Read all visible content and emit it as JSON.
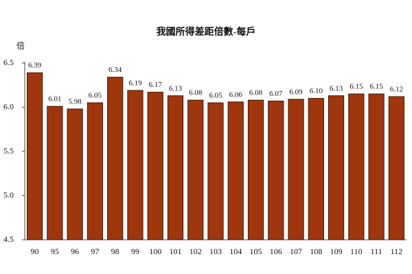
{
  "chart_data": {
    "type": "bar",
    "title": "我國所得差距倍數-每戶",
    "y_label": "倍",
    "categories": [
      "90",
      "95",
      "96",
      "97",
      "98",
      "99",
      "100",
      "101",
      "102",
      "103",
      "104",
      "105",
      "106",
      "107",
      "108",
      "109",
      "110",
      "111",
      "112"
    ],
    "values": [
      6.39,
      6.01,
      5.98,
      6.05,
      6.34,
      6.19,
      6.17,
      6.13,
      6.08,
      6.05,
      6.06,
      6.08,
      6.07,
      6.09,
      6.1,
      6.13,
      6.15,
      6.15,
      6.12
    ],
    "value_labels": [
      "6.39",
      "6.01",
      "5.98",
      "6.05",
      "6.34",
      "6.19",
      "6.17",
      "6.13",
      "6.08",
      "6.05",
      "6.06",
      "6.08",
      "6.07",
      "6.09",
      "6.10",
      "6.13",
      "6.15",
      "6.15",
      "6.12"
    ],
    "color": "#a0360e",
    "ylim": [
      4.5,
      6.5
    ],
    "yticks": [
      4.5,
      {
        "value": 5,
        "label": "5.0"
      },
      5.5,
      {
        "value": 6,
        "label": "6.0"
      },
      6.5
    ],
    "grid": false
  }
}
